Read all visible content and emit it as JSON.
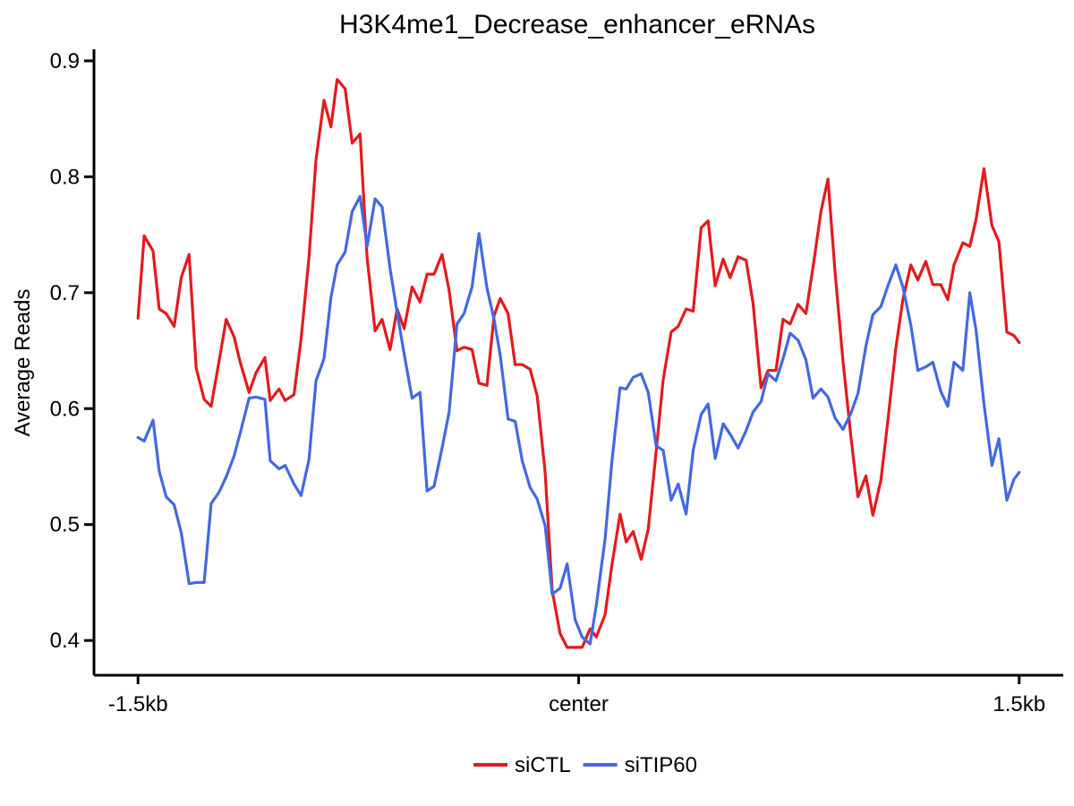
{
  "chart_data": {
    "type": "line",
    "title": "H3K4me1_Decrease_enhancer_eRNAs",
    "xlabel": "",
    "ylabel": "Average Reads",
    "ylim": [
      0.37,
      0.91
    ],
    "yticks": [
      0.4,
      0.5,
      0.6,
      0.7,
      0.8,
      0.9
    ],
    "ytick_labels": [
      "0.4",
      "0.5",
      "0.6",
      "0.7",
      "0.8",
      "0.9"
    ],
    "xlim": [
      -0.05,
      1.05
    ],
    "xticks": [
      0,
      0.5,
      1
    ],
    "xtick_labels": [
      "-1.5kb",
      "center",
      "1.5kb"
    ],
    "grid": false,
    "legend_position": "bottom",
    "series": [
      {
        "name": "siCTL",
        "color": "#e41a1c",
        "points": [
          [
            0.0,
            0.678
          ],
          [
            0.007,
            0.749
          ],
          [
            0.017,
            0.736
          ],
          [
            0.024,
            0.686
          ],
          [
            0.032,
            0.682
          ],
          [
            0.041,
            0.671
          ],
          [
            0.049,
            0.713
          ],
          [
            0.058,
            0.733
          ],
          [
            0.066,
            0.635
          ],
          [
            0.075,
            0.608
          ],
          [
            0.083,
            0.602
          ],
          [
            0.092,
            0.641
          ],
          [
            0.1,
            0.677
          ],
          [
            0.109,
            0.662
          ],
          [
            0.116,
            0.64
          ],
          [
            0.126,
            0.614
          ],
          [
            0.134,
            0.631
          ],
          [
            0.144,
            0.644
          ],
          [
            0.15,
            0.607
          ],
          [
            0.16,
            0.617
          ],
          [
            0.167,
            0.607
          ],
          [
            0.177,
            0.612
          ],
          [
            0.185,
            0.66
          ],
          [
            0.194,
            0.73
          ],
          [
            0.202,
            0.815
          ],
          [
            0.211,
            0.866
          ],
          [
            0.219,
            0.843
          ],
          [
            0.226,
            0.884
          ],
          [
            0.235,
            0.876
          ],
          [
            0.243,
            0.829
          ],
          [
            0.252,
            0.837
          ],
          [
            0.26,
            0.73
          ],
          [
            0.269,
            0.667
          ],
          [
            0.277,
            0.677
          ],
          [
            0.286,
            0.651
          ],
          [
            0.294,
            0.686
          ],
          [
            0.302,
            0.669
          ],
          [
            0.311,
            0.705
          ],
          [
            0.32,
            0.692
          ],
          [
            0.328,
            0.716
          ],
          [
            0.336,
            0.716
          ],
          [
            0.345,
            0.733
          ],
          [
            0.353,
            0.702
          ],
          [
            0.362,
            0.65
          ],
          [
            0.37,
            0.653
          ],
          [
            0.379,
            0.651
          ],
          [
            0.387,
            0.622
          ],
          [
            0.396,
            0.62
          ],
          [
            0.404,
            0.68
          ],
          [
            0.411,
            0.695
          ],
          [
            0.42,
            0.682
          ],
          [
            0.428,
            0.638
          ],
          [
            0.436,
            0.638
          ],
          [
            0.445,
            0.634
          ],
          [
            0.453,
            0.611
          ],
          [
            0.462,
            0.545
          ],
          [
            0.47,
            0.443
          ],
          [
            0.479,
            0.406
          ],
          [
            0.487,
            0.394
          ],
          [
            0.496,
            0.394
          ],
          [
            0.504,
            0.394
          ],
          [
            0.513,
            0.41
          ],
          [
            0.52,
            0.403
          ],
          [
            0.53,
            0.422
          ],
          [
            0.538,
            0.466
          ],
          [
            0.547,
            0.509
          ],
          [
            0.554,
            0.485
          ],
          [
            0.562,
            0.494
          ],
          [
            0.571,
            0.47
          ],
          [
            0.579,
            0.496
          ],
          [
            0.588,
            0.563
          ],
          [
            0.596,
            0.625
          ],
          [
            0.605,
            0.666
          ],
          [
            0.613,
            0.671
          ],
          [
            0.622,
            0.686
          ],
          [
            0.63,
            0.684
          ],
          [
            0.639,
            0.756
          ],
          [
            0.647,
            0.762
          ],
          [
            0.655,
            0.706
          ],
          [
            0.664,
            0.729
          ],
          [
            0.672,
            0.713
          ],
          [
            0.681,
            0.731
          ],
          [
            0.69,
            0.728
          ],
          [
            0.698,
            0.691
          ],
          [
            0.707,
            0.618
          ],
          [
            0.715,
            0.633
          ],
          [
            0.724,
            0.633
          ],
          [
            0.732,
            0.677
          ],
          [
            0.74,
            0.673
          ],
          [
            0.749,
            0.69
          ],
          [
            0.758,
            0.682
          ],
          [
            0.766,
            0.722
          ],
          [
            0.775,
            0.77
          ],
          [
            0.783,
            0.798
          ],
          [
            0.791,
            0.718
          ],
          [
            0.8,
            0.641
          ],
          [
            0.809,
            0.576
          ],
          [
            0.817,
            0.524
          ],
          [
            0.826,
            0.542
          ],
          [
            0.834,
            0.508
          ],
          [
            0.843,
            0.538
          ],
          [
            0.851,
            0.59
          ],
          [
            0.86,
            0.652
          ],
          [
            0.868,
            0.694
          ],
          [
            0.877,
            0.724
          ],
          [
            0.885,
            0.711
          ],
          [
            0.894,
            0.727
          ],
          [
            0.902,
            0.707
          ],
          [
            0.911,
            0.707
          ],
          [
            0.919,
            0.694
          ],
          [
            0.926,
            0.724
          ],
          [
            0.936,
            0.743
          ],
          [
            0.944,
            0.74
          ],
          [
            0.951,
            0.763
          ],
          [
            0.96,
            0.807
          ],
          [
            0.969,
            0.758
          ],
          [
            0.977,
            0.744
          ],
          [
            0.986,
            0.666
          ],
          [
            0.994,
            0.663
          ],
          [
            1.0,
            0.657
          ]
        ]
      },
      {
        "name": "siTIP60",
        "color": "#4169e1",
        "points": [
          [
            0.0,
            0.575
          ],
          [
            0.007,
            0.572
          ],
          [
            0.017,
            0.59
          ],
          [
            0.024,
            0.546
          ],
          [
            0.032,
            0.524
          ],
          [
            0.041,
            0.517
          ],
          [
            0.049,
            0.493
          ],
          [
            0.058,
            0.449
          ],
          [
            0.066,
            0.45
          ],
          [
            0.075,
            0.45
          ],
          [
            0.083,
            0.518
          ],
          [
            0.092,
            0.528
          ],
          [
            0.1,
            0.541
          ],
          [
            0.109,
            0.559
          ],
          [
            0.116,
            0.579
          ],
          [
            0.126,
            0.609
          ],
          [
            0.134,
            0.61
          ],
          [
            0.144,
            0.608
          ],
          [
            0.15,
            0.555
          ],
          [
            0.16,
            0.548
          ],
          [
            0.167,
            0.551
          ],
          [
            0.177,
            0.535
          ],
          [
            0.185,
            0.525
          ],
          [
            0.194,
            0.556
          ],
          [
            0.202,
            0.624
          ],
          [
            0.211,
            0.643
          ],
          [
            0.219,
            0.696
          ],
          [
            0.226,
            0.724
          ],
          [
            0.235,
            0.735
          ],
          [
            0.243,
            0.77
          ],
          [
            0.252,
            0.783
          ],
          [
            0.26,
            0.74
          ],
          [
            0.269,
            0.781
          ],
          [
            0.277,
            0.774
          ],
          [
            0.286,
            0.721
          ],
          [
            0.294,
            0.683
          ],
          [
            0.302,
            0.647
          ],
          [
            0.311,
            0.609
          ],
          [
            0.32,
            0.614
          ],
          [
            0.328,
            0.529
          ],
          [
            0.336,
            0.533
          ],
          [
            0.345,
            0.566
          ],
          [
            0.353,
            0.597
          ],
          [
            0.362,
            0.673
          ],
          [
            0.37,
            0.682
          ],
          [
            0.379,
            0.705
          ],
          [
            0.387,
            0.751
          ],
          [
            0.396,
            0.704
          ],
          [
            0.404,
            0.677
          ],
          [
            0.411,
            0.646
          ],
          [
            0.42,
            0.591
          ],
          [
            0.428,
            0.589
          ],
          [
            0.436,
            0.555
          ],
          [
            0.445,
            0.532
          ],
          [
            0.453,
            0.522
          ],
          [
            0.462,
            0.499
          ],
          [
            0.47,
            0.44
          ],
          [
            0.479,
            0.445
          ],
          [
            0.487,
            0.466
          ],
          [
            0.496,
            0.418
          ],
          [
            0.504,
            0.403
          ],
          [
            0.513,
            0.397
          ],
          [
            0.52,
            0.43
          ],
          [
            0.53,
            0.487
          ],
          [
            0.538,
            0.556
          ],
          [
            0.547,
            0.618
          ],
          [
            0.554,
            0.617
          ],
          [
            0.562,
            0.627
          ],
          [
            0.571,
            0.63
          ],
          [
            0.579,
            0.614
          ],
          [
            0.588,
            0.568
          ],
          [
            0.596,
            0.564
          ],
          [
            0.605,
            0.521
          ],
          [
            0.613,
            0.535
          ],
          [
            0.622,
            0.509
          ],
          [
            0.63,
            0.564
          ],
          [
            0.639,
            0.595
          ],
          [
            0.647,
            0.604
          ],
          [
            0.655,
            0.557
          ],
          [
            0.664,
            0.587
          ],
          [
            0.672,
            0.578
          ],
          [
            0.681,
            0.566
          ],
          [
            0.69,
            0.581
          ],
          [
            0.698,
            0.597
          ],
          [
            0.707,
            0.606
          ],
          [
            0.715,
            0.63
          ],
          [
            0.724,
            0.624
          ],
          [
            0.732,
            0.643
          ],
          [
            0.74,
            0.665
          ],
          [
            0.749,
            0.659
          ],
          [
            0.758,
            0.642
          ],
          [
            0.766,
            0.609
          ],
          [
            0.775,
            0.617
          ],
          [
            0.783,
            0.61
          ],
          [
            0.791,
            0.592
          ],
          [
            0.8,
            0.582
          ],
          [
            0.809,
            0.596
          ],
          [
            0.817,
            0.613
          ],
          [
            0.826,
            0.654
          ],
          [
            0.834,
            0.681
          ],
          [
            0.843,
            0.688
          ],
          [
            0.851,
            0.706
          ],
          [
            0.86,
            0.724
          ],
          [
            0.868,
            0.705
          ],
          [
            0.877,
            0.672
          ],
          [
            0.885,
            0.633
          ],
          [
            0.894,
            0.636
          ],
          [
            0.902,
            0.64
          ],
          [
            0.911,
            0.615
          ],
          [
            0.919,
            0.602
          ],
          [
            0.926,
            0.64
          ],
          [
            0.936,
            0.633
          ],
          [
            0.944,
            0.7
          ],
          [
            0.951,
            0.668
          ],
          [
            0.96,
            0.604
          ],
          [
            0.969,
            0.551
          ],
          [
            0.977,
            0.574
          ],
          [
            0.986,
            0.521
          ],
          [
            0.994,
            0.539
          ],
          [
            1.0,
            0.545
          ]
        ]
      }
    ]
  }
}
